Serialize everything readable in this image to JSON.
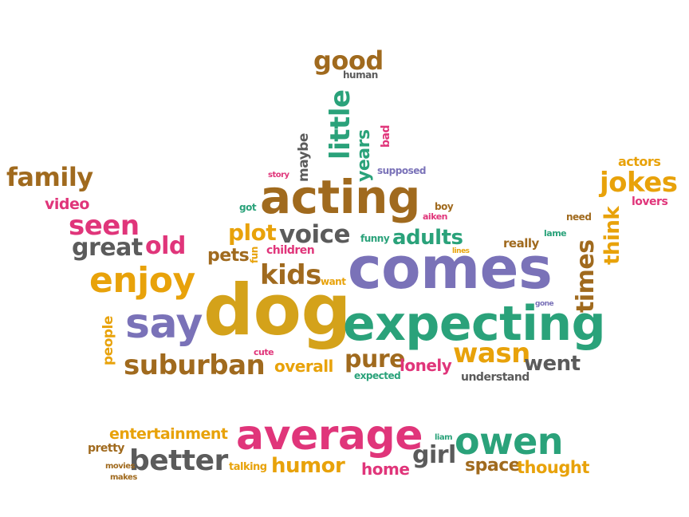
{
  "words": {
    "good": "good",
    "human": "human",
    "little": "little",
    "years": "years",
    "bad": "bad",
    "maybe": "maybe",
    "story": "story",
    "supposed": "supposed",
    "acting": "acting",
    "got": "got",
    "boy": "boy",
    "aiken": "aiken",
    "family": "family",
    "video": "video",
    "seen": "seen",
    "great": "great",
    "old": "old",
    "plot": "plot",
    "voice": "voice",
    "funny": "funny",
    "adults": "adults",
    "fun": "fun",
    "pets": "pets",
    "children": "children",
    "lines": "lines",
    "really": "really",
    "need": "need",
    "lame": "lame",
    "jokes": "jokes",
    "actors": "actors",
    "lovers": "lovers",
    "think": "think",
    "times": "times",
    "enjoy": "enjoy",
    "kids": "kids",
    "want": "want",
    "comes": "comes",
    "gone": "gone",
    "say": "say",
    "dog": "dog",
    "expecting": "expecting",
    "people": "people",
    "cute": "cute",
    "suburban": "suburban",
    "overall": "overall",
    "pure": "pure",
    "wasn": "wasn",
    "went": "went",
    "lonely": "lonely",
    "expected": "expected",
    "understand": "understand",
    "entertainment": "entertainment",
    "average": "average",
    "liam": "liam",
    "owen": "owen",
    "pretty": "pretty",
    "better": "better",
    "movies": "movies",
    "makes": "makes",
    "talking": "talking",
    "humor": "humor",
    "home": "home",
    "girl": "girl",
    "space": "space",
    "thought": "thought"
  }
}
